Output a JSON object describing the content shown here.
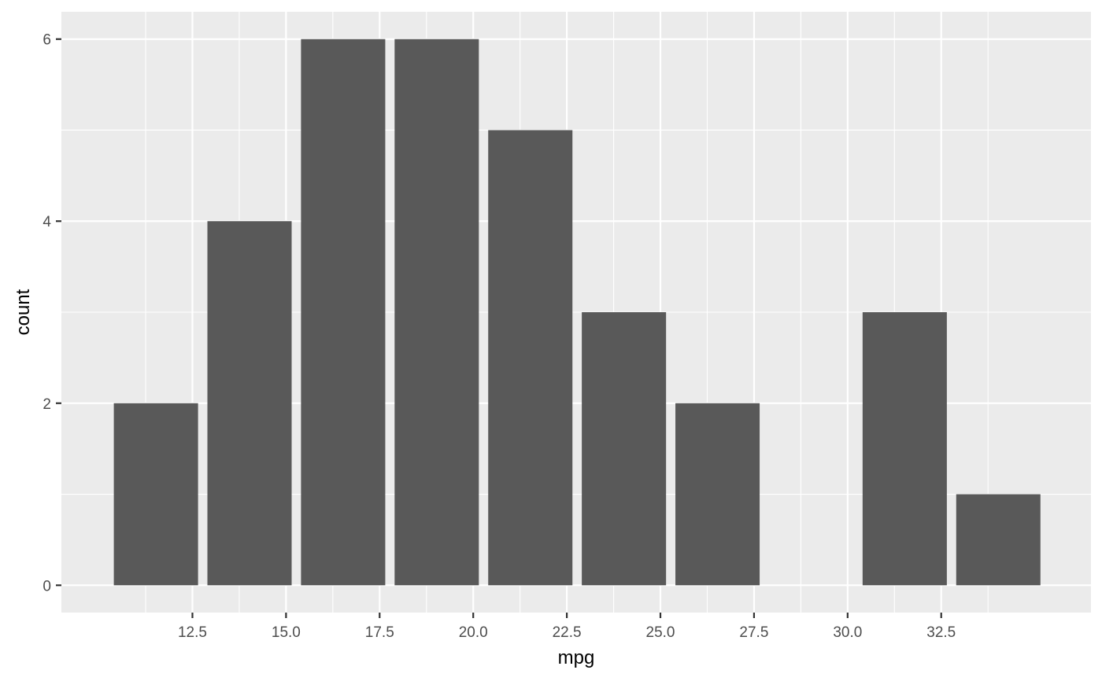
{
  "chart_data": {
    "type": "bar",
    "title": "",
    "xlabel": "mpg",
    "ylabel": "count",
    "bins": [
      {
        "start": 10.4,
        "end": 12.65,
        "count": 2
      },
      {
        "start": 12.9,
        "end": 15.15,
        "count": 4
      },
      {
        "start": 15.4,
        "end": 17.65,
        "count": 6
      },
      {
        "start": 17.9,
        "end": 20.15,
        "count": 6
      },
      {
        "start": 20.4,
        "end": 22.65,
        "count": 5
      },
      {
        "start": 22.9,
        "end": 25.15,
        "count": 3
      },
      {
        "start": 25.4,
        "end": 27.65,
        "count": 2
      },
      {
        "start": 30.4,
        "end": 32.65,
        "count": 3
      },
      {
        "start": 32.9,
        "end": 35.15,
        "count": 1
      }
    ],
    "xlim": [
      9.0,
      36.5
    ],
    "ylim": [
      -0.3,
      6.3
    ],
    "xticks": [
      12.5,
      15.0,
      17.5,
      20.0,
      22.5,
      25.0,
      27.5,
      30.0,
      32.5
    ],
    "xtick_labels": [
      "12.5",
      "15.0",
      "17.5",
      "20.0",
      "22.5",
      "25.0",
      "27.5",
      "30.0",
      "32.5"
    ],
    "yticks": [
      0,
      2,
      4,
      6
    ],
    "ytick_labels": [
      "0",
      "2",
      "4",
      "6"
    ],
    "grid": true,
    "colors": {
      "bar": "#595959",
      "panel": "#ebebeb",
      "grid": "#ffffff"
    }
  }
}
